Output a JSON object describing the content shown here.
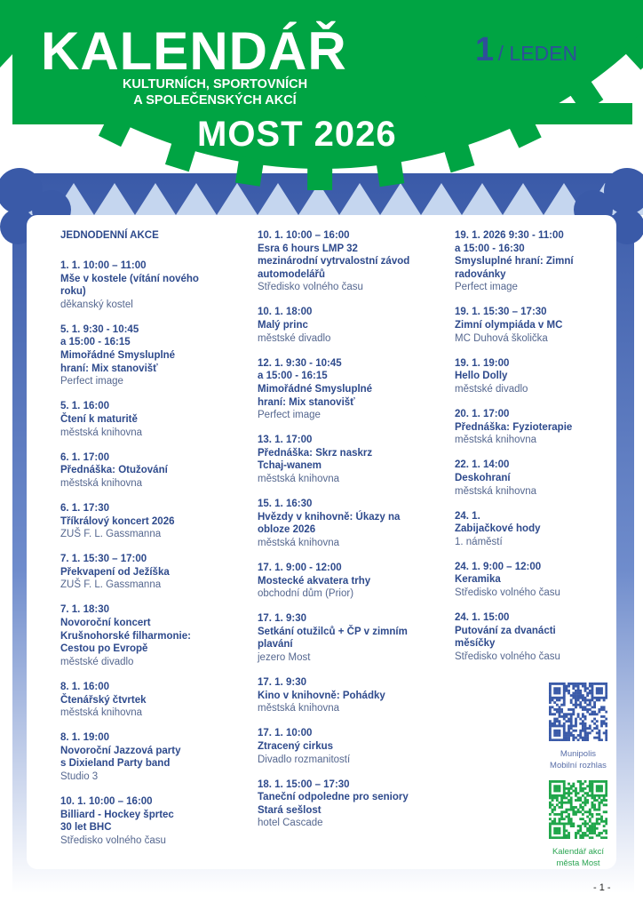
{
  "header": {
    "title": "KALENDÁŘ",
    "subtitle_line1": "KULTURNÍCH, SPORTOVNÍCH",
    "subtitle_line2": "A SPOLEČENSKÝCH AKCÍ",
    "city": "MOST 2026",
    "month_number": "1",
    "month_name": "/ LEDEN"
  },
  "colors": {
    "green": "#00a443",
    "dark_blue": "#3a5aa8",
    "light_blue": "#c5d6ef",
    "text_blue": "#2e4a8c"
  },
  "section_heading": "JEDNODENNÍ AKCE",
  "columns": [
    [
      {
        "date": "1. 1. 10:00 – 11:00",
        "title": "Mše v kostele (vítání nového\nroku)",
        "venue": "děkanský kostel"
      },
      {
        "date": "5. 1. 9:30 - 10:45\na 15:00 - 16:15",
        "title": "Mimořádné Smysluplné\nhraní: Mix stanovišť",
        "venue": "Perfect image"
      },
      {
        "date": "5. 1. 16:00",
        "title": "Čtení k maturitě",
        "venue": "městská knihovna"
      },
      {
        "date": "6. 1. 17:00",
        "title": "Přednáška: Otužování",
        "venue": "městská knihovna"
      },
      {
        "date": "6. 1. 17:30",
        "title": "Tříkrálový koncert 2026",
        "venue": "ZUŠ F. L. Gassmanna"
      },
      {
        "date": "7. 1. 15:30 – 17:00",
        "title": "Překvapení od Ježíška",
        "venue": "ZUŠ F. L. Gassmanna"
      },
      {
        "date": "7. 1. 18:30",
        "title": "Novoroční koncert\nKrušnohorské filharmonie:\nCestou po Evropě",
        "venue": "městské divadlo"
      },
      {
        "date": "8. 1. 16:00",
        "title": "Čtenářský čtvrtek",
        "venue": "městská knihovna"
      },
      {
        "date": "8. 1. 19:00",
        "title": "Novoroční Jazzová party\ns Dixieland Party band",
        "venue": "Studio 3"
      },
      {
        "date": "10. 1. 10:00 – 16:00",
        "title": "Billiard - Hockey šprtec\n30 let BHC",
        "venue": "Středisko volného času"
      }
    ],
    [
      {
        "date": "10. 1. 10:00 – 16:00",
        "title": "Esra 6 hours LMP 32\nmezinárodní vytrvalostní závod\nautomodelářů",
        "venue": "Středisko volného času"
      },
      {
        "date": "10. 1. 18:00",
        "title": "Malý princ",
        "venue": "městské divadlo"
      },
      {
        "date": "12. 1. 9:30 - 10:45\na 15:00 - 16:15",
        "title": "Mimořádné Smysluplné\nhraní: Mix stanovišť",
        "venue": "Perfect image"
      },
      {
        "date": "13. 1. 17:00",
        "title": "Přednáška: Skrz naskrz\nTchaj-wanem",
        "venue": "městská knihovna"
      },
      {
        "date": "15. 1. 16:30",
        "title": "Hvězdy v knihovně: Úkazy na\nobloze 2026",
        "venue": "městská knihovna"
      },
      {
        "date": "17. 1. 9:00 - 12:00",
        "title": "Mostecké akvatera trhy",
        "venue": "obchodní dům (Prior)"
      },
      {
        "date": "17. 1. 9:30",
        "title": "Setkání otužilců + ČP v zimním\nplavání",
        "venue": "jezero Most"
      },
      {
        "date": "17. 1. 9:30",
        "title": "Kino v knihovně: Pohádky",
        "venue": "městská knihovna"
      },
      {
        "date": "17. 1. 10:00",
        "title": "Ztracený cirkus",
        "venue": "Divadlo rozmanitostí"
      },
      {
        "date": "18. 1. 15:00 – 17:30",
        "title": "Taneční odpoledne pro seniory\nStará sešlost",
        "venue": "hotel Cascade"
      }
    ],
    [
      {
        "date": "19. 1. 2026 9:30 - 11:00\na 15:00 - 16:30",
        "title": "Smysluplné hraní: Zimní\nradovánky",
        "venue": "Perfect image"
      },
      {
        "date": "19. 1. 15:30 – 17:30",
        "title": "Zimní olympiáda v MC",
        "venue": "MC Duhová školička"
      },
      {
        "date": "19. 1. 19:00",
        "title": "Hello Dolly",
        "venue": "městské divadlo"
      },
      {
        "date": "20. 1. 17:00",
        "title": "Přednáška: Fyzioterapie",
        "venue": "městská knihovna"
      },
      {
        "date": "22. 1. 14:00",
        "title": "Deskohraní",
        "venue": "městská knihovna"
      },
      {
        "date": "24. 1.",
        "title": "Zabijačkové hody",
        "venue": "1. náměstí"
      },
      {
        "date": "24. 1. 9:00 – 12:00",
        "title": "Keramika",
        "venue": "Středisko volného času"
      },
      {
        "date": "24. 1. 15:00",
        "title": "Putování za dvanácti\nměsíčky",
        "venue": "Středisko volného času"
      }
    ]
  ],
  "qr_codes": [
    {
      "label_line1": "Munipolis",
      "label_line2": "Mobilní rozhlas",
      "color": "#3a5aa8"
    },
    {
      "label_line1": "Kalendář akcí",
      "label_line2": "města Most",
      "color": "#1fa64a"
    }
  ],
  "page_number": "- 1 -"
}
